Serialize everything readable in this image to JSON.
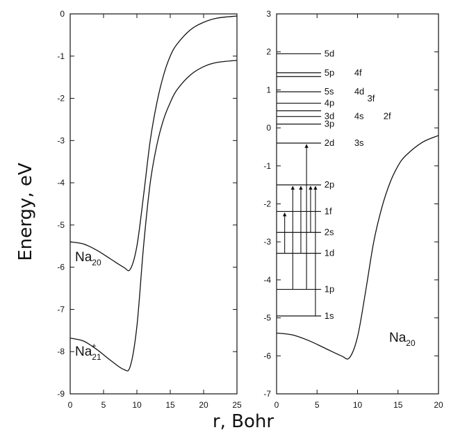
{
  "chart_data": [
    {
      "type": "line",
      "panel": "left",
      "xlabel": "r, Bohr",
      "ylabel": "Energy, eV",
      "xlim": [
        0,
        25
      ],
      "ylim": [
        -9,
        0
      ],
      "x_ticks": [
        "0",
        "5",
        "10",
        "15",
        "20",
        "25"
      ],
      "y_ticks": [
        "0",
        "-1",
        "-2",
        "-3",
        "-4",
        "-5",
        "-6",
        "-7",
        "-8",
        "-9"
      ],
      "series": [
        {
          "name": "Na20",
          "label_main": "Na",
          "label_sub": "20",
          "x": [
            0,
            2,
            4,
            6,
            8,
            9,
            10,
            11,
            12,
            13,
            14,
            15,
            16,
            18,
            20,
            22,
            25
          ],
          "y": [
            -5.4,
            -5.45,
            -5.6,
            -5.8,
            -6.0,
            -6.05,
            -5.5,
            -4.3,
            -3.0,
            -2.1,
            -1.45,
            -1.0,
            -0.72,
            -0.38,
            -0.2,
            -0.1,
            -0.05
          ]
        },
        {
          "name": "Na21+",
          "label_main": "Na",
          "label_sub": "21",
          "label_sup": "+",
          "x": [
            0,
            2,
            4,
            6,
            8,
            9,
            10,
            11,
            12,
            13,
            14,
            15,
            16,
            18,
            20,
            22,
            25
          ],
          "y": [
            -7.68,
            -7.75,
            -7.95,
            -8.2,
            -8.42,
            -8.35,
            -7.4,
            -5.5,
            -4.0,
            -3.1,
            -2.5,
            -2.1,
            -1.8,
            -1.45,
            -1.25,
            -1.15,
            -1.1
          ]
        }
      ]
    },
    {
      "type": "line",
      "panel": "right",
      "xlim": [
        0,
        20
      ],
      "ylim": [
        -7,
        3
      ],
      "x_ticks": [
        "0",
        "5",
        "10",
        "15",
        "20"
      ],
      "y_ticks": [
        "3",
        "2",
        "1",
        "0",
        "-1",
        "-2",
        "-3",
        "-4",
        "-5",
        "-6",
        "-7"
      ],
      "series": [
        {
          "name": "Na20",
          "label_main": "Na",
          "label_sub": "20",
          "x": [
            0,
            2,
            4,
            6,
            8,
            9,
            10,
            11,
            12,
            13,
            14,
            15,
            16,
            18,
            20
          ],
          "y": [
            -5.4,
            -5.45,
            -5.6,
            -5.8,
            -6.0,
            -6.05,
            -5.5,
            -4.3,
            -3.0,
            -2.1,
            -1.45,
            -1.0,
            -0.72,
            -0.38,
            -0.2
          ]
        }
      ],
      "levels": [
        {
          "energy": 1.95,
          "labels": [
            "5d"
          ]
        },
        {
          "energy": 1.45,
          "labels": [
            "5p",
            "4f"
          ]
        },
        {
          "energy": 1.35,
          "labels": []
        },
        {
          "energy": 0.95,
          "labels": [
            "5s",
            "4d"
          ]
        },
        {
          "energy": 0.65,
          "labels": [
            "4p",
            "3f"
          ]
        },
        {
          "energy": 0.45,
          "labels": []
        },
        {
          "energy": 0.3,
          "labels": [
            "3d",
            "4s",
            "2f"
          ]
        },
        {
          "energy": 0.1,
          "labels": [
            "3p"
          ]
        },
        {
          "energy": -0.4,
          "labels": [
            "2d",
            "3s"
          ]
        },
        {
          "energy": -1.5,
          "labels": [
            "2p"
          ]
        },
        {
          "energy": -2.2,
          "labels": [
            "1f"
          ]
        },
        {
          "energy": -2.75,
          "labels": [
            "2s"
          ]
        },
        {
          "energy": -3.3,
          "labels": [
            "1d"
          ]
        },
        {
          "energy": -4.25,
          "labels": [
            "1p"
          ]
        },
        {
          "energy": -4.95,
          "labels": [
            "1s"
          ]
        }
      ],
      "transitions": [
        {
          "x": 1,
          "from": -3.3,
          "to": -2.2
        },
        {
          "x": 2,
          "from": -4.25,
          "to": -1.5
        },
        {
          "x": 3,
          "from": -3.3,
          "to": -1.5
        },
        {
          "x": 3.7,
          "from": -4.25,
          "to": -0.4
        },
        {
          "x": 4.2,
          "from": -2.75,
          "to": -1.5
        },
        {
          "x": 4.8,
          "from": -4.95,
          "to": -1.5
        }
      ]
    }
  ]
}
